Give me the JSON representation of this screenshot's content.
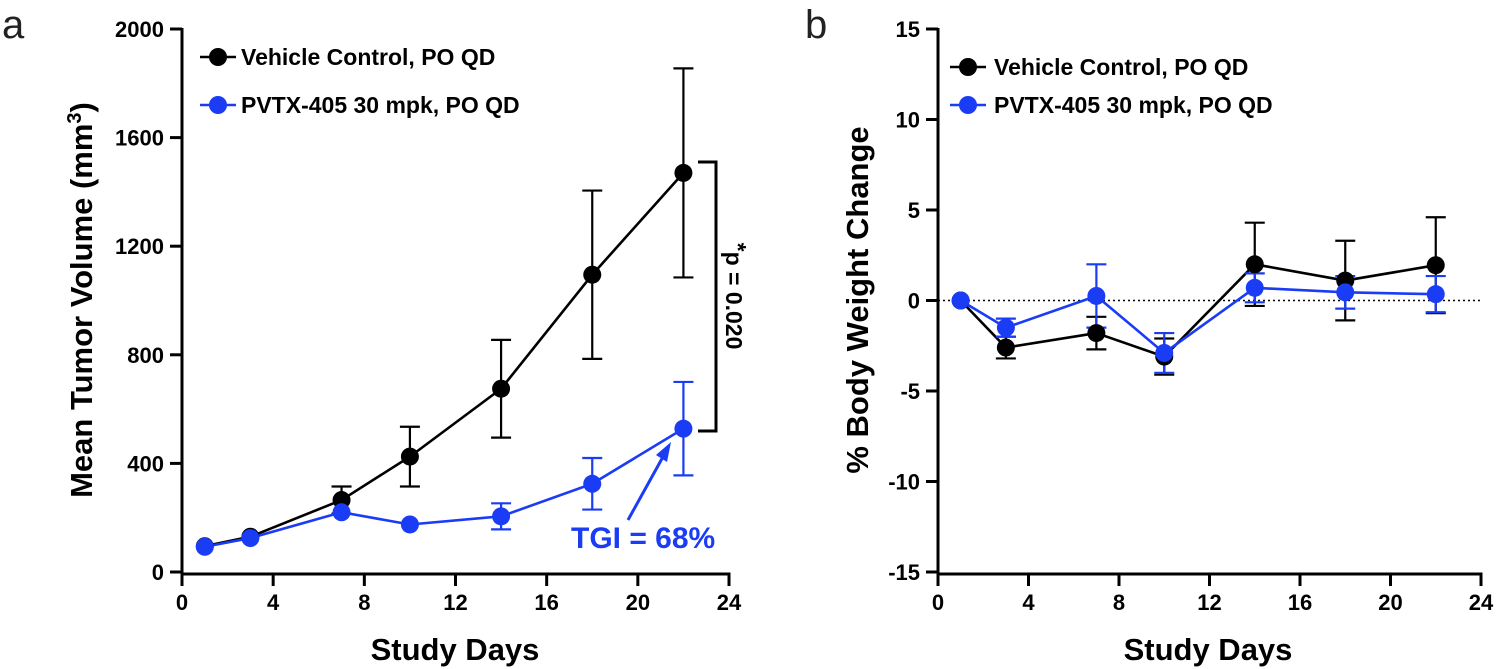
{
  "colors": {
    "control": "#000000",
    "treatment": "#1a3cf5"
  },
  "chart_data": [
    {
      "panel_label": "a",
      "type": "line",
      "xlabel": "Study Days",
      "ylabel": "Mean Tumor Volume (mm",
      "ylabel_sup": "3",
      "ylabel_close": ")",
      "xlim": [
        0,
        24
      ],
      "ylim": [
        0,
        2000
      ],
      "xticks": [
        0,
        4,
        8,
        12,
        16,
        20,
        24
      ],
      "yticks": [
        0,
        400,
        800,
        1200,
        1600,
        2000
      ],
      "xtick_labels": [
        "0",
        "4",
        "8",
        "12",
        "16",
        "20",
        "24"
      ],
      "ytick_labels": [
        "0",
        "400",
        "800",
        "1200",
        "1600",
        "2000"
      ],
      "legend": [
        "Vehicle Control, PO QD",
        "PVTX-405 30 mpk, PO QD"
      ],
      "series": [
        {
          "name": "Vehicle Control, PO QD",
          "x": [
            1,
            3,
            7,
            10,
            14,
            18,
            22
          ],
          "y": [
            95,
            130,
            265,
            425,
            675,
            1095,
            1470
          ],
          "err": [
            0,
            0,
            50,
            110,
            180,
            310,
            385
          ]
        },
        {
          "name": "PVTX-405 30 mpk, PO QD",
          "x": [
            1,
            3,
            7,
            10,
            14,
            18,
            22
          ],
          "y": [
            93,
            125,
            220,
            175,
            205,
            325,
            528
          ],
          "err": [
            0,
            0,
            0,
            0,
            48,
            95,
            172
          ]
        }
      ],
      "annotations": {
        "pvalue_star": "*",
        "pvalue": "p = 0.020",
        "tgi": "TGI = 68%"
      }
    },
    {
      "panel_label": "b",
      "type": "line",
      "xlabel": "Study Days",
      "ylabel": "% Body Weight Change",
      "xlim": [
        0,
        24
      ],
      "ylim": [
        -15,
        15
      ],
      "xticks": [
        0,
        4,
        8,
        12,
        16,
        20,
        24
      ],
      "yticks": [
        -15,
        -10,
        -5,
        0,
        5,
        10,
        15
      ],
      "xtick_labels": [
        "0",
        "4",
        "8",
        "12",
        "16",
        "20",
        "24"
      ],
      "ytick_labels": [
        "-15",
        "-10",
        "-5",
        "0",
        "5",
        "10",
        "15"
      ],
      "reference_line": 0,
      "legend": [
        "Vehicle Control, PO QD",
        "PVTX-405 30 mpk, PO QD"
      ],
      "series": [
        {
          "name": "Vehicle Control, PO QD",
          "x": [
            1,
            3,
            7,
            10,
            14,
            18,
            22
          ],
          "y": [
            0,
            -2.6,
            -1.8,
            -3.1,
            2.0,
            1.1,
            1.95
          ],
          "err": [
            0,
            0.6,
            0.9,
            1.0,
            2.3,
            2.2,
            2.65
          ]
        },
        {
          "name": "PVTX-405 30 mpk, PO QD",
          "x": [
            1,
            3,
            7,
            10,
            14,
            18,
            22
          ],
          "y": [
            0,
            -1.5,
            0.25,
            -2.9,
            0.7,
            0.45,
            0.35
          ],
          "err": [
            0,
            0.5,
            1.75,
            1.1,
            0.8,
            0.9,
            1.0
          ]
        }
      ]
    }
  ]
}
